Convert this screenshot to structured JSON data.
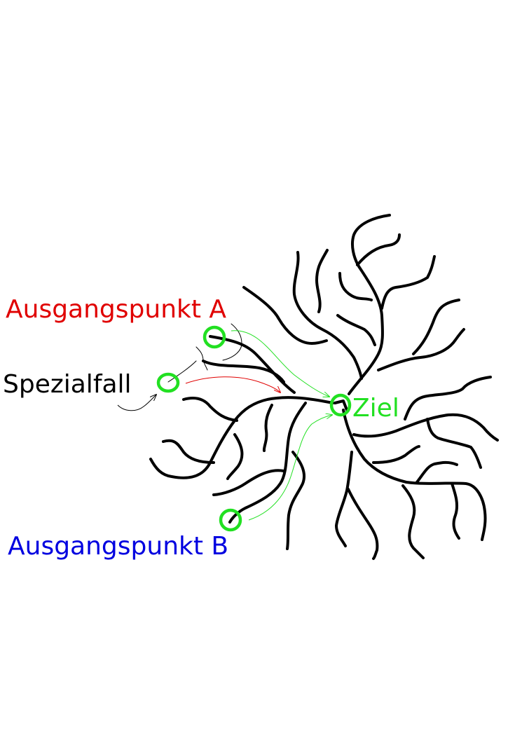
{
  "labels": {
    "start_a": "Ausgangspunkt A",
    "start_b": "Ausgangspunkt B",
    "special": "Spezialfall",
    "goal": "Ziel"
  },
  "colors": {
    "start_a": "#e00000",
    "start_b": "#0000e0",
    "special": "#000000",
    "goal": "#22e022",
    "marker": "#22e022",
    "branch": "#000000"
  }
}
